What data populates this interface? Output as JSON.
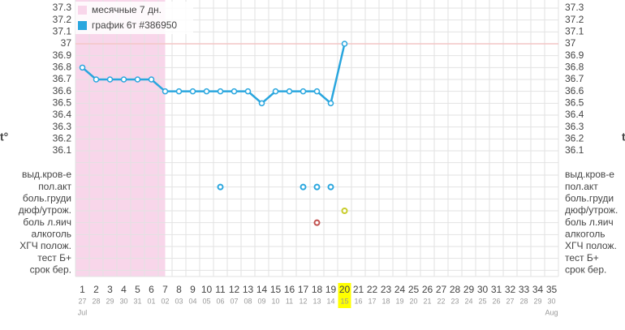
{
  "chart_data": {
    "type": "line",
    "axis_symbol": "t°",
    "x": [
      1,
      2,
      3,
      4,
      5,
      6,
      7,
      8,
      9,
      10,
      11,
      12,
      13,
      14,
      15,
      16,
      17,
      18,
      19,
      20,
      21,
      22,
      23,
      24,
      25,
      26,
      27,
      28,
      29,
      30,
      31,
      32,
      33,
      34,
      35
    ],
    "x_dates": [
      "27",
      "28",
      "29",
      "30",
      "31",
      "01",
      "02",
      "03",
      "04",
      "05",
      "06",
      "07",
      "08",
      "09",
      "10",
      "11",
      "12",
      "13",
      "14",
      "15",
      "16",
      "17",
      "18",
      "19",
      "20",
      "21",
      "22",
      "23",
      "24",
      "25",
      "26",
      "27",
      "28",
      "29",
      "30"
    ],
    "months": [
      {
        "day": 1,
        "label": "Jul"
      },
      {
        "day": 35,
        "label": "Aug"
      }
    ],
    "highlight_day": 20,
    "menses": {
      "name": "месячные 7 дн.",
      "color": "#f8d6ea",
      "days": 7
    },
    "series": [
      {
        "name": "график 6т #386950",
        "color": "#29a6de",
        "values": [
          36.8,
          36.7,
          36.7,
          36.7,
          36.7,
          36.7,
          36.6,
          36.6,
          36.6,
          36.6,
          36.6,
          36.6,
          36.6,
          36.5,
          36.6,
          36.6,
          36.6,
          36.6,
          36.5,
          37.0,
          null,
          null,
          null,
          null,
          null,
          null,
          null,
          null,
          null,
          null,
          null,
          null,
          null,
          null,
          null
        ]
      }
    ],
    "coverline": 37,
    "ylim": [
      36.1,
      37.3
    ],
    "yticks": [
      36.1,
      36.2,
      36.3,
      36.4,
      36.5,
      36.6,
      36.7,
      36.8,
      36.9,
      37,
      37.1,
      37.2,
      37.3
    ],
    "symptoms": [
      {
        "label": "выд.кров-е",
        "days": []
      },
      {
        "label": "пол.акт",
        "days": [
          11,
          17,
          18,
          19
        ],
        "color": "#29a6de"
      },
      {
        "label": "боль.груди",
        "days": []
      },
      {
        "label": "дюф/утрож.",
        "days": [
          20
        ],
        "color": "#c8cc2a"
      },
      {
        "label": "боль л.яич",
        "days": [
          18
        ],
        "color": "#c0504d"
      },
      {
        "label": "алкоголь",
        "days": []
      },
      {
        "label": "ХГЧ полож.",
        "days": []
      },
      {
        "label": "тест Б+",
        "days": []
      },
      {
        "label": "срок бер.",
        "days": []
      }
    ]
  }
}
